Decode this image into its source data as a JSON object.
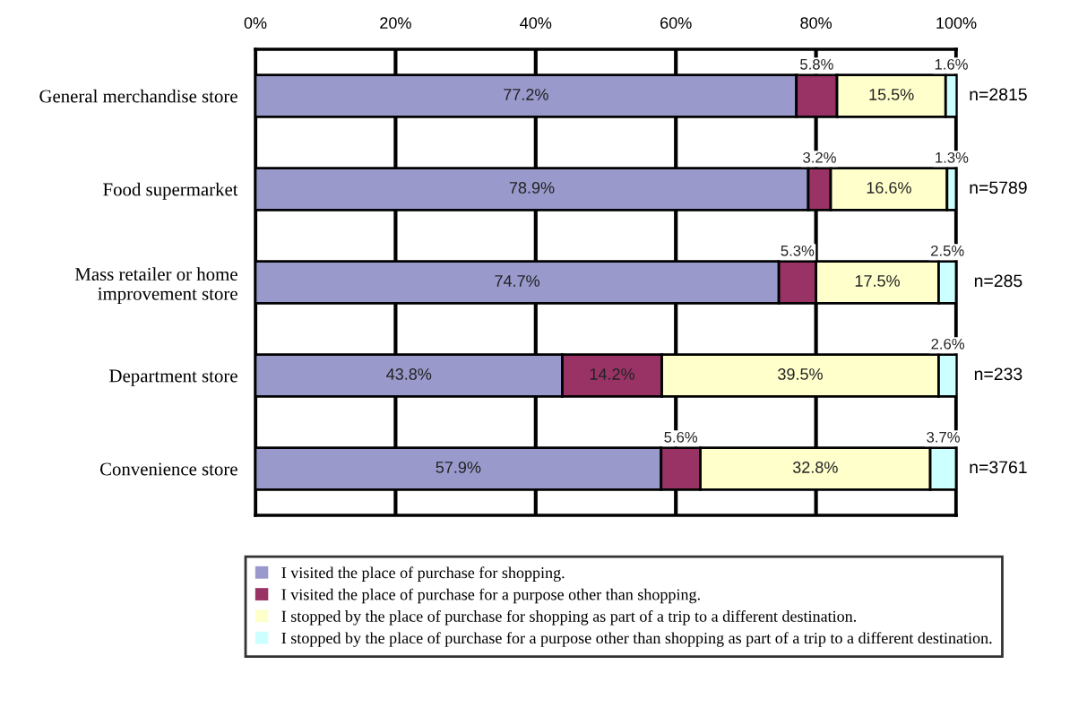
{
  "chart_data": {
    "type": "bar",
    "orientation": "horizontal",
    "stacked": true,
    "categories": [
      "General merchandise store",
      "Food supermarket",
      "Mass retailer or home\nimprovement store",
      "Department store",
      "Convenience store"
    ],
    "series": [
      {
        "name": "I visited the place of purchase for shopping.",
        "color": "#9999cc",
        "values": [
          77.2,
          78.9,
          74.7,
          43.8,
          57.9
        ],
        "value_labels": [
          "77.2%",
          "78.9%",
          "74.7%",
          "43.8%",
          "57.9%"
        ]
      },
      {
        "name": "I visited the place of purchase for a purpose other than shopping.",
        "color": "#993366",
        "values": [
          5.8,
          3.2,
          5.3,
          14.2,
          5.6
        ],
        "value_labels": [
          "5.8%",
          "3.2%",
          "5.3%",
          "14.2%",
          "5.6%"
        ]
      },
      {
        "name": "I stopped by the place of purchase for shopping as part of a trip to a different destination.",
        "color": "#ffffcc",
        "values": [
          15.5,
          16.6,
          17.5,
          39.5,
          32.8
        ],
        "value_labels": [
          "15.5%",
          "16.6%",
          "17.5%",
          "39.5%",
          "32.8%"
        ]
      },
      {
        "name": "I stopped by the place of purchase for a purpose other than shopping as part of a trip to a different destination.",
        "color": "#ccffff",
        "values": [
          1.6,
          1.3,
          2.5,
          2.6,
          3.7
        ],
        "value_labels": [
          "1.6%",
          "1.3%",
          "2.5%",
          "2.6%",
          "3.7%"
        ]
      }
    ],
    "xlim": [
      0,
      100
    ],
    "xticks": [
      {
        "value": 0,
        "label": "0%"
      },
      {
        "value": 20,
        "label": "20%"
      },
      {
        "value": 40,
        "label": "40%"
      },
      {
        "value": 60,
        "label": "60%"
      },
      {
        "value": 80,
        "label": "80%"
      },
      {
        "value": 100,
        "label": "100%"
      }
    ],
    "grid": "x",
    "legend": "bottom",
    "annotations": [
      "n=2815",
      "n=5789",
      "n=285",
      "n=233",
      "n=3761"
    ]
  }
}
